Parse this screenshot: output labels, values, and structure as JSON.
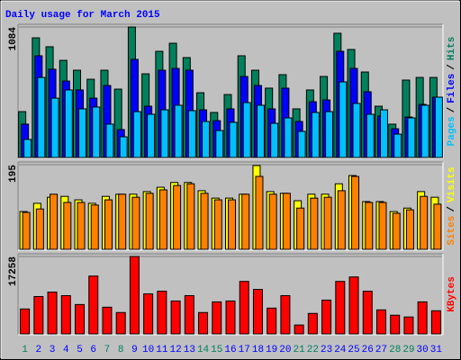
{
  "title": "Daily usage for March 2015",
  "chart_data": [
    {
      "type": "bar",
      "legend_separator": "/",
      "ylim": [
        0,
        1084
      ],
      "yticks": [
        1084
      ],
      "series": [
        {
          "name": "Hits",
          "color": "#00805c",
          "values": [
            381,
            994,
            920,
            807,
            725,
            650,
            725,
            568,
            1084,
            695,
            882,
            949,
            830,
            538,
            374,
            523,
            845,
            725,
            576,
            688,
            404,
            561,
            673,
            1032,
            897,
            710,
            426,
            277,
            643,
            665,
            665
          ]
        },
        {
          "name": "Files",
          "color": "#0000ff",
          "values": [
            277,
            845,
            733,
            635,
            561,
            493,
            598,
            232,
            815,
            426,
            725,
            740,
            725,
            396,
            306,
            404,
            673,
            598,
            404,
            576,
            299,
            463,
            478,
            882,
            740,
            546,
            344,
            239,
            336,
            441,
            501
          ]
        },
        {
          "name": "Pages",
          "color": "#00c0ff",
          "values": [
            150,
            665,
            493,
            561,
            404,
            419,
            277,
            172,
            381,
            359,
            396,
            434,
            389,
            299,
            224,
            292,
            456,
            434,
            284,
            329,
            217,
            374,
            381,
            628,
            449,
            359,
            396,
            194,
            329,
            434,
            501
          ]
        }
      ]
    },
    {
      "type": "bar",
      "legend_separator": "/",
      "ylim": [
        0,
        195
      ],
      "yticks": [
        195
      ],
      "series": [
        {
          "name": "Visits",
          "color": "#ffff00",
          "values": [
            87,
            106,
            120,
            122,
            114,
            106,
            122,
            127,
            127,
            133,
            143,
            154,
            154,
            135,
            118,
            118,
            127,
            193,
            133,
            129,
            112,
            127,
            127,
            151,
            170,
            110,
            110,
            87,
            95,
            133,
            120
          ]
        },
        {
          "name": "Sites",
          "color": "#ff8000",
          "values": [
            85,
            93,
            127,
            108,
            108,
            102,
            114,
            127,
            120,
            129,
            137,
            147,
            151,
            129,
            114,
            114,
            127,
            168,
            127,
            129,
            95,
            118,
            120,
            135,
            168,
            108,
            108,
            83,
            91,
            122,
            104
          ]
        }
      ]
    },
    {
      "type": "bar",
      "ylim": [
        0,
        17258
      ],
      "yticks": [
        17258
      ],
      "categories": [
        "1",
        "2",
        "3",
        "4",
        "5",
        "6",
        "7",
        "8",
        "9",
        "10",
        "11",
        "12",
        "13",
        "14",
        "15",
        "16",
        "17",
        "18",
        "19",
        "20",
        "21",
        "22",
        "23",
        "24",
        "25",
        "26",
        "27",
        "28",
        "29",
        "30",
        "31"
      ],
      "label_colors": [
        "#00805c",
        "#0000ff",
        "#0000ff",
        "#0000ff",
        "#0000ff",
        "#0000ff",
        "#00805c",
        "#00805c",
        "#0000ff",
        "#0000ff",
        "#0000ff",
        "#0000ff",
        "#0000ff",
        "#00805c",
        "#00805c",
        "#0000ff",
        "#0000ff",
        "#0000ff",
        "#0000ff",
        "#0000ff",
        "#00805c",
        "#00805c",
        "#0000ff",
        "#0000ff",
        "#0000ff",
        "#0000ff",
        "#0000ff",
        "#00805c",
        "#00805c",
        "#0000ff",
        "#0000ff"
      ],
      "series": [
        {
          "name": "KBytes",
          "color": "#ff0000",
          "values": [
            5554,
            8331,
            9323,
            8530,
            6546,
            12894,
            5951,
            4761,
            17258,
            8927,
            9522,
            7340,
            8530,
            4761,
            7141,
            7340,
            11704,
            9918,
            5753,
            8530,
            1984,
            4563,
            7538,
            11704,
            12696,
            9522,
            5356,
            4166,
            3769,
            7141,
            5158
          ]
        }
      ]
    }
  ]
}
